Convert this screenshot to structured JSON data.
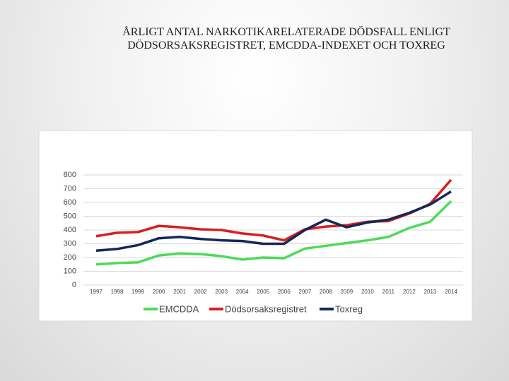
{
  "chart_data": {
    "type": "line",
    "title": "ÅRLIGT ANTAL NARKOTIKARELATERADE DÖDSFALL ENLIGT DÖDSORSAKSREGISTRET, EMCDDA-INDEXET OCH TOXREG",
    "categories": [
      "1997",
      "1998",
      "1999",
      "2000",
      "2001",
      "2002",
      "2003",
      "2004",
      "2005",
      "2006",
      "2007",
      "2008",
      "2009",
      "2010",
      "2011",
      "2012",
      "2013",
      "2014"
    ],
    "series": [
      {
        "name": "EMCDDA",
        "color": "#4cdb5a",
        "values": [
          150,
          160,
          165,
          215,
          230,
          225,
          210,
          185,
          200,
          195,
          265,
          285,
          305,
          325,
          350,
          415,
          460,
          610
        ]
      },
      {
        "name": "Dödsorsaksregistret",
        "color": "#d71f1f",
        "values": [
          355,
          380,
          385,
          430,
          420,
          405,
          400,
          375,
          360,
          325,
          405,
          425,
          435,
          460,
          465,
          520,
          590,
          765
        ]
      },
      {
        "name": "Toxreg",
        "color": "#13275a",
        "values": [
          250,
          262,
          290,
          340,
          350,
          335,
          325,
          320,
          300,
          300,
          400,
          475,
          420,
          455,
          475,
          525,
          585,
          680
        ]
      }
    ],
    "ylim": [
      0,
      800
    ],
    "yticks": [
      0,
      100,
      200,
      300,
      400,
      500,
      600,
      700,
      800
    ],
    "grid": true
  }
}
